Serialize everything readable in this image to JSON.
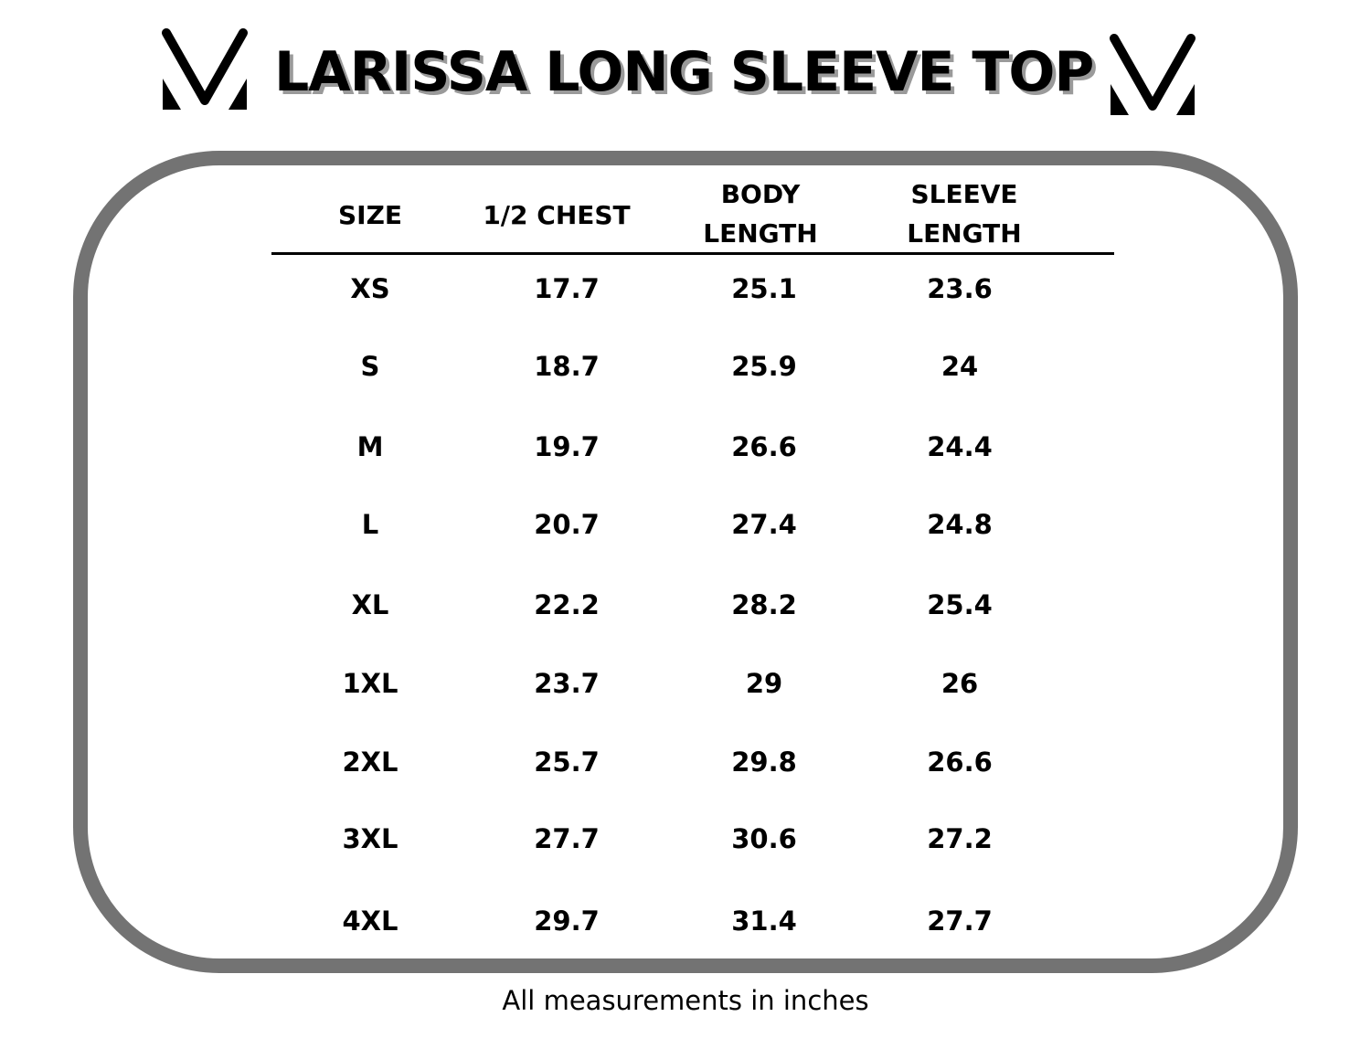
{
  "title": "LARISSA LONG SLEEVE TOP",
  "headers": {
    "size": "SIZE",
    "chest": "1/2 CHEST",
    "body": "BODY\nLENGTH",
    "sleeve": "SLEEVE\nLENGTH"
  },
  "rows": [
    {
      "size": "XS",
      "chest": "17.7",
      "body": "25.1",
      "sleeve": "23.6"
    },
    {
      "size": "S",
      "chest": "18.7",
      "body": "25.9",
      "sleeve": "24"
    },
    {
      "size": "M",
      "chest": "19.7",
      "body": "26.6",
      "sleeve": "24.4"
    },
    {
      "size": "L",
      "chest": "20.7",
      "body": "27.4",
      "sleeve": "24.8"
    },
    {
      "size": "XL",
      "chest": "22.2",
      "body": "28.2",
      "sleeve": "25.4"
    },
    {
      "size": "1XL",
      "chest": "23.7",
      "body": "29",
      "sleeve": "26"
    },
    {
      "size": "2XL",
      "chest": "25.7",
      "body": "29.8",
      "sleeve": "26.6"
    },
    {
      "size": "3XL",
      "chest": "27.7",
      "body": "30.6",
      "sleeve": "27.2"
    },
    {
      "size": "4XL",
      "chest": "29.7",
      "body": "31.4",
      "sleeve": "27.7"
    }
  ],
  "note": "All measurements in inches",
  "colors": {
    "frame": "#737373",
    "title_shadow": "#9a9a9a"
  }
}
